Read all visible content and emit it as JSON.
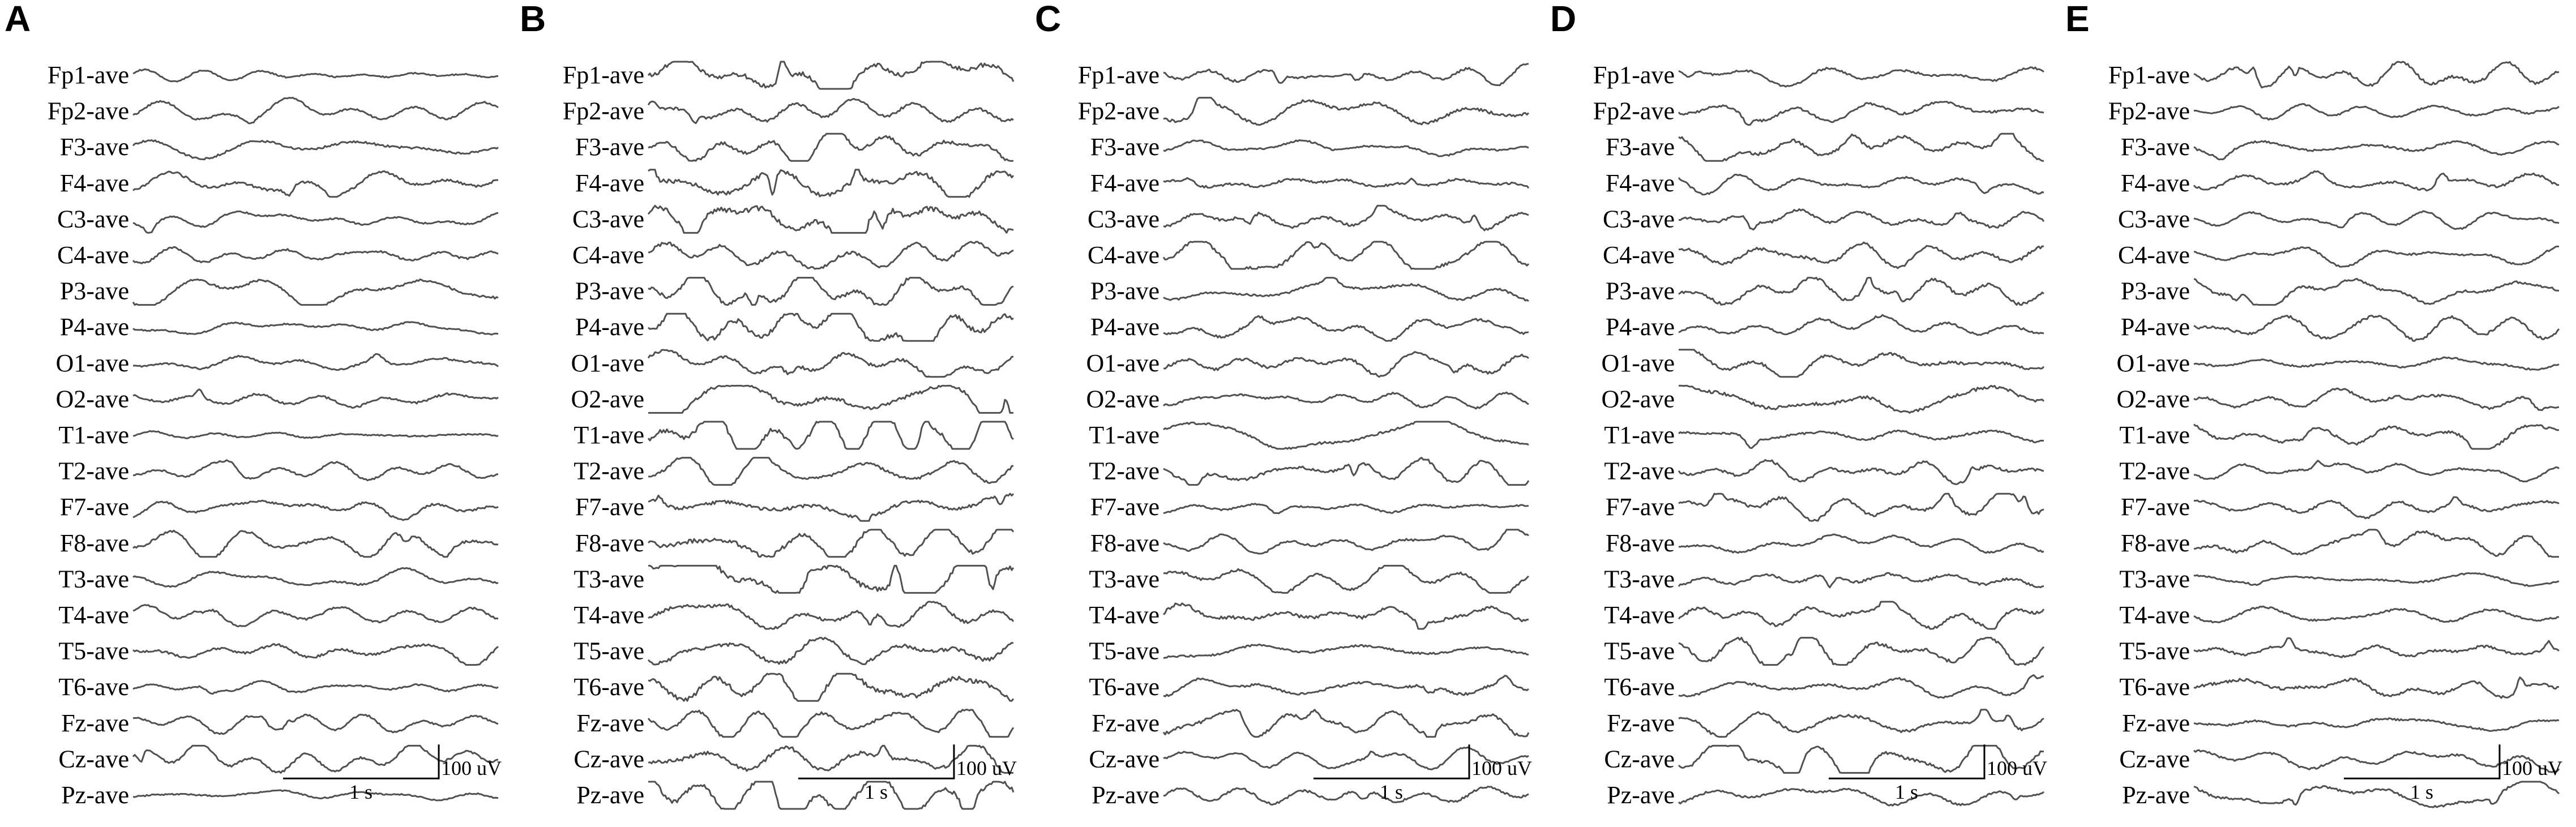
{
  "panels": [
    {
      "letter": "A",
      "time_scale": "1 s",
      "amp_scale": "100 uV",
      "activity": 0.8
    },
    {
      "letter": "B",
      "time_scale": "1 s",
      "amp_scale": "100 uV",
      "activity": 1.6
    },
    {
      "letter": "C",
      "time_scale": "1 s",
      "amp_scale": "100 uV",
      "activity": 1.0
    },
    {
      "letter": "D",
      "time_scale": "1 s",
      "amp_scale": "100 uV",
      "activity": 1.1
    },
    {
      "letter": "E",
      "time_scale": "1 s",
      "amp_scale": "100 uV",
      "activity": 0.9
    }
  ],
  "channels": [
    "Fp1-ave",
    "Fp2-ave",
    "F3-ave",
    "F4-ave",
    "C3-ave",
    "C4-ave",
    "P3-ave",
    "P4-ave",
    "O1-ave",
    "O2-ave",
    "T1-ave",
    "T2-ave",
    "F7-ave",
    "F8-ave",
    "T3-ave",
    "T4-ave",
    "T5-ave",
    "T6-ave",
    "Fz-ave",
    "Cz-ave",
    "Pz-ave"
  ],
  "colors": {
    "trace": "#505050",
    "text": "#000000",
    "background": "#ffffff"
  }
}
